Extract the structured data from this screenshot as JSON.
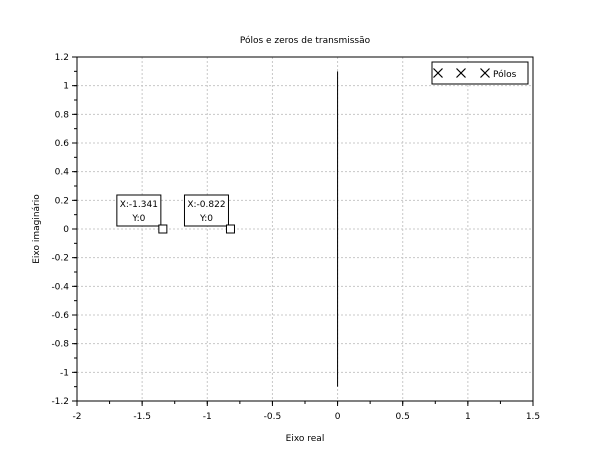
{
  "chart_data": {
    "type": "scatter",
    "title": "Pólos e zeros de transmissão",
    "xlabel": "Eixo real",
    "ylabel": "Eixo imaginário",
    "xlim": [
      -2,
      1.5
    ],
    "ylim": [
      -1.2,
      1.2
    ],
    "xticks": [
      "-2",
      "-1.5",
      "-1",
      "-0.5",
      "0",
      "0.5",
      "1",
      "1.5"
    ],
    "yticks": [
      "1.2",
      "1",
      "0.8",
      "0.6",
      "0.4",
      "0.2",
      "0",
      "-0.2",
      "-0.4",
      "-0.6",
      "-0.8",
      "-1",
      "-1.2"
    ],
    "grid": true,
    "legend_position": "top-right",
    "series": [
      {
        "name": "Pólos",
        "marker": "x",
        "points": []
      }
    ],
    "lines": [
      {
        "x": [
          0,
          0
        ],
        "y": [
          -1.1,
          1.1
        ]
      }
    ],
    "datatips": [
      {
        "x": -1.341,
        "y": 0,
        "line1": "X:-1.341",
        "line2": "Y:0"
      },
      {
        "x": -0.822,
        "y": 0,
        "line1": "X:-0.822",
        "line2": "Y:0"
      }
    ],
    "colors": {
      "axis": "#000000",
      "grid": "#c8c8c8",
      "line": "#000000"
    }
  }
}
